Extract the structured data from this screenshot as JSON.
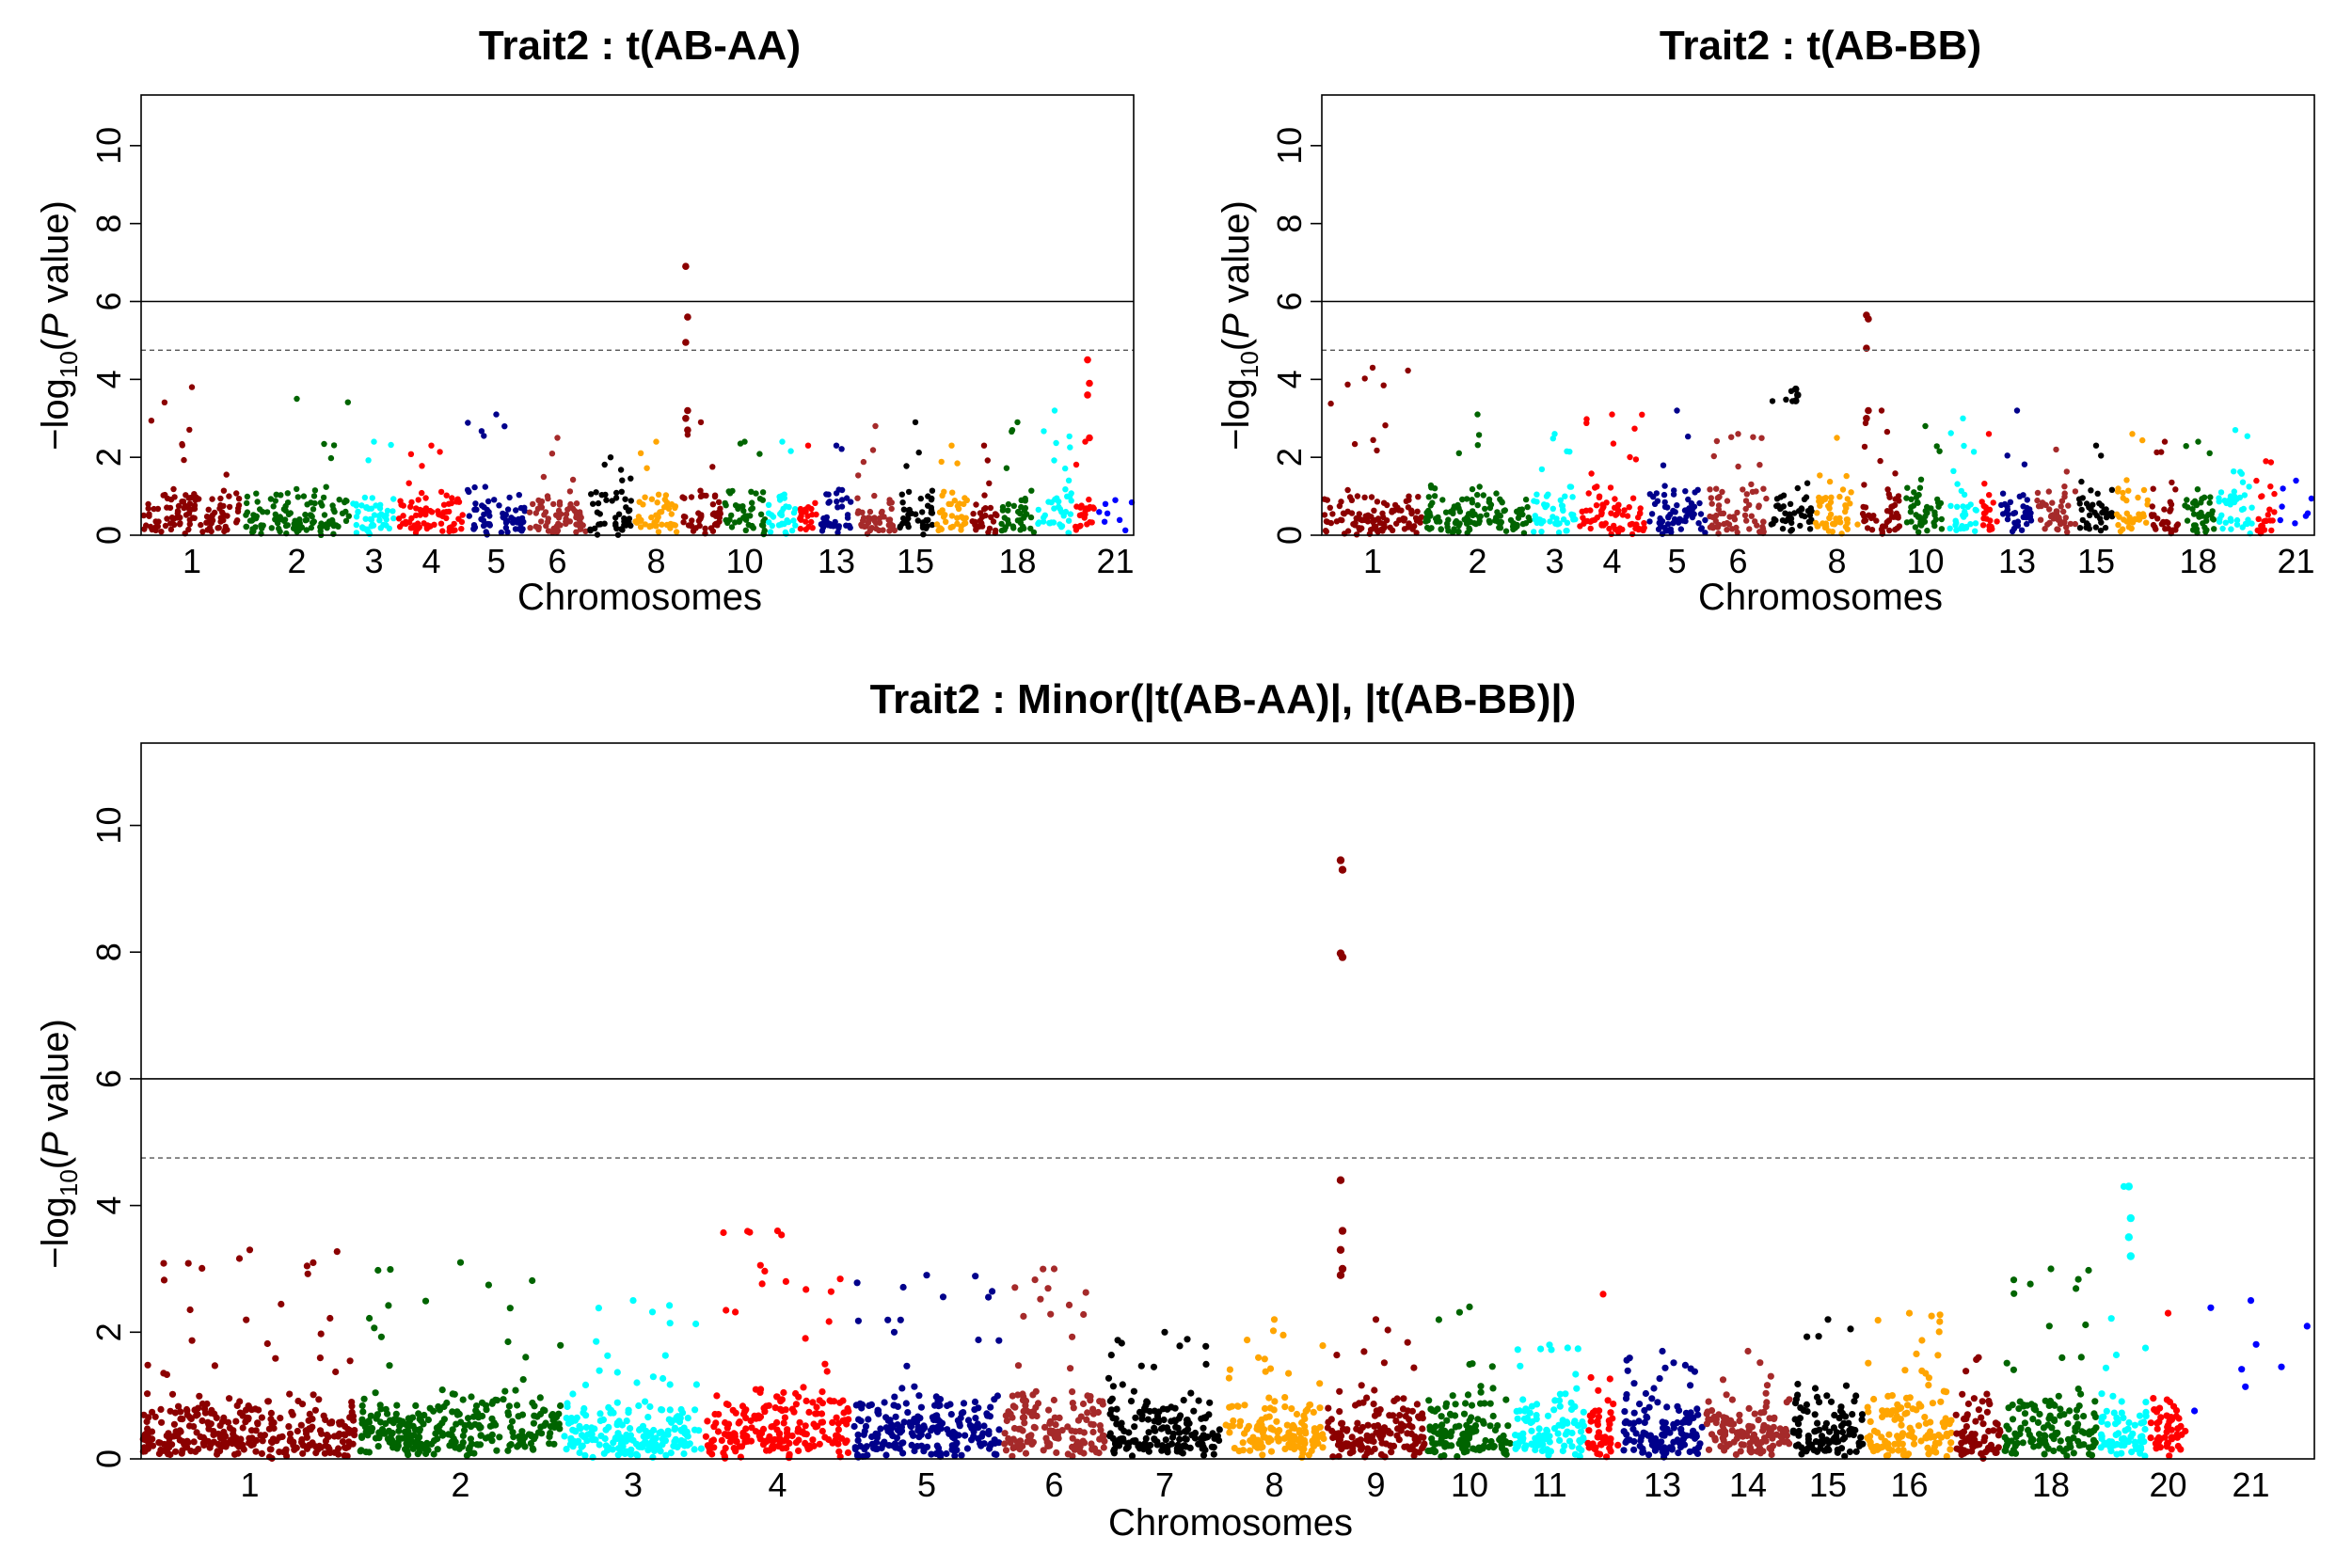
{
  "figure": {
    "background": "#ffffff"
  },
  "chart_data": [
    {
      "type": "scatter",
      "title": "Trait2 : t(AB-AA)",
      "xlabel": "Chromosomes",
      "ylabel": "−log10(P value)",
      "ylim": [
        0,
        11.3
      ],
      "yticks": [
        0,
        2,
        4,
        6,
        8,
        10
      ],
      "grid": false,
      "thresholds": [
        {
          "value": 6.0,
          "style": "solid"
        },
        {
          "value": 4.75,
          "style": "dashed"
        }
      ],
      "chromosome_labels": [
        "1",
        "2",
        "3",
        "4",
        "5",
        "6",
        "8",
        "10",
        "13",
        "15",
        "18",
        "21"
      ],
      "chromosomes": [
        {
          "chr": "1",
          "color": "#8b0000",
          "base": 1.3,
          "max": 3.8
        },
        {
          "chr": "2",
          "color": "#006400",
          "base": 1.3,
          "max": 3.5
        },
        {
          "chr": "3",
          "color": "#00ffff",
          "base": 1.2,
          "max": 2.4
        },
        {
          "chr": "4",
          "color": "#ff0000",
          "base": 1.3,
          "max": 2.3
        },
        {
          "chr": "5",
          "color": "#00008b",
          "base": 1.4,
          "max": 3.1
        },
        {
          "chr": "6",
          "color": "#a52a2a",
          "base": 1.4,
          "max": 2.5
        },
        {
          "chr": "7",
          "color": "#000000",
          "base": 1.3,
          "max": 2.0
        },
        {
          "chr": "8",
          "color": "#ffa500",
          "base": 1.3,
          "max": 2.4
        },
        {
          "chr": "9",
          "color": "#8b0000",
          "base": 1.2,
          "max": 2.9
        },
        {
          "chr": "10",
          "color": "#006400",
          "base": 1.3,
          "max": 2.4
        },
        {
          "chr": "11",
          "color": "#00ffff",
          "base": 1.3,
          "max": 2.4
        },
        {
          "chr": "12",
          "color": "#ff0000",
          "base": 1.2,
          "max": 2.3
        },
        {
          "chr": "13",
          "color": "#00008b",
          "base": 1.3,
          "max": 2.3
        },
        {
          "chr": "14",
          "color": "#a52a2a",
          "base": 1.2,
          "max": 2.8
        },
        {
          "chr": "15",
          "color": "#000000",
          "base": 1.3,
          "max": 2.9
        },
        {
          "chr": "16",
          "color": "#ffa500",
          "base": 1.3,
          "max": 2.3
        },
        {
          "chr": "17",
          "color": "#8b0000",
          "base": 1.2,
          "max": 2.3
        },
        {
          "chr": "18",
          "color": "#006400",
          "base": 1.3,
          "max": 2.9
        },
        {
          "chr": "19",
          "color": "#00ffff",
          "base": 1.4,
          "max": 3.2
        },
        {
          "chr": "20",
          "color": "#ff0000",
          "base": 1.3,
          "max": 2.4
        },
        {
          "chr": "21",
          "color": "#0000ff",
          "base": 0.5,
          "max": 0.9
        }
      ],
      "peaks": [
        {
          "chr": "9",
          "y": [
            6.9,
            5.6,
            4.95,
            3.2,
            3.0,
            2.7
          ]
        },
        {
          "chr": "20",
          "y": [
            4.5,
            3.9,
            3.6,
            2.5
          ]
        }
      ]
    },
    {
      "type": "scatter",
      "title": "Trait2 : t(AB-BB)",
      "xlabel": "Chromosomes",
      "ylabel": "−log10(P value)",
      "ylim": [
        0,
        11.3
      ],
      "yticks": [
        0,
        2,
        4,
        6,
        8,
        10
      ],
      "grid": false,
      "thresholds": [
        {
          "value": 6.0,
          "style": "solid"
        },
        {
          "value": 4.75,
          "style": "dashed"
        }
      ],
      "chromosome_labels": [
        "1",
        "2",
        "3",
        "4",
        "5",
        "6",
        "8",
        "10",
        "13",
        "15",
        "18",
        "21"
      ],
      "chromosomes": [
        {
          "chr": "1",
          "color": "#8b0000",
          "base": 1.3,
          "max": 4.3
        },
        {
          "chr": "2",
          "color": "#006400",
          "base": 1.4,
          "max": 3.1
        },
        {
          "chr": "3",
          "color": "#00ffff",
          "base": 1.4,
          "max": 2.6
        },
        {
          "chr": "4",
          "color": "#ff0000",
          "base": 1.4,
          "max": 3.1
        },
        {
          "chr": "5",
          "color": "#00008b",
          "base": 1.3,
          "max": 3.2
        },
        {
          "chr": "6",
          "color": "#a52a2a",
          "base": 1.4,
          "max": 2.6
        },
        {
          "chr": "7",
          "color": "#000000",
          "base": 1.3,
          "max": 3.7
        },
        {
          "chr": "8",
          "color": "#ffa500",
          "base": 1.4,
          "max": 2.5
        },
        {
          "chr": "9",
          "color": "#8b0000",
          "base": 1.4,
          "max": 3.2
        },
        {
          "chr": "10",
          "color": "#006400",
          "base": 1.4,
          "max": 2.8
        },
        {
          "chr": "11",
          "color": "#00ffff",
          "base": 1.4,
          "max": 3.0
        },
        {
          "chr": "12",
          "color": "#ff0000",
          "base": 1.3,
          "max": 2.6
        },
        {
          "chr": "13",
          "color": "#00008b",
          "base": 1.4,
          "max": 3.2
        },
        {
          "chr": "14",
          "color": "#a52a2a",
          "base": 1.2,
          "max": 2.2
        },
        {
          "chr": "15",
          "color": "#000000",
          "base": 1.3,
          "max": 2.3
        },
        {
          "chr": "16",
          "color": "#ffa500",
          "base": 1.4,
          "max": 2.6
        },
        {
          "chr": "17",
          "color": "#8b0000",
          "base": 1.3,
          "max": 2.4
        },
        {
          "chr": "18",
          "color": "#006400",
          "base": 1.3,
          "max": 2.4
        },
        {
          "chr": "19",
          "color": "#00ffff",
          "base": 1.4,
          "max": 2.7
        },
        {
          "chr": "20",
          "color": "#ff0000",
          "base": 1.2,
          "max": 1.9
        },
        {
          "chr": "21",
          "color": "#0000ff",
          "base": 0.6,
          "max": 1.4
        }
      ],
      "peaks": [
        {
          "chr": "9",
          "y": [
            5.65,
            5.55,
            4.8,
            3.2,
            3.0
          ]
        },
        {
          "chr": "7",
          "y": [
            3.75,
            3.6,
            3.45
          ]
        }
      ]
    },
    {
      "type": "scatter",
      "title": "Trait2 : Minor(|t(AB-AA)|, |t(AB-BB)|)",
      "xlabel": "Chromosomes",
      "ylabel": "−log10(P value)",
      "ylim": [
        0,
        11.3
      ],
      "yticks": [
        0,
        2,
        4,
        6,
        8,
        10
      ],
      "grid": false,
      "thresholds": [
        {
          "value": 6.0,
          "style": "solid"
        },
        {
          "value": 4.75,
          "style": "dashed"
        }
      ],
      "chromosome_labels": [
        "1",
        "2",
        "3",
        "4",
        "5",
        "6",
        "7",
        "8",
        "9",
        "10",
        "11",
        "13",
        "14",
        "15",
        "16",
        "18",
        "20",
        "21"
      ],
      "chromosomes": [
        {
          "chr": "1",
          "color": "#8b0000",
          "base": 1.1,
          "max": 3.3
        },
        {
          "chr": "2",
          "color": "#006400",
          "base": 1.2,
          "max": 3.1
        },
        {
          "chr": "3",
          "color": "#00ffff",
          "base": 1.1,
          "max": 2.5
        },
        {
          "chr": "4",
          "color": "#ff0000",
          "base": 1.2,
          "max": 3.6
        },
        {
          "chr": "5",
          "color": "#00008b",
          "base": 1.1,
          "max": 2.9
        },
        {
          "chr": "6",
          "color": "#a52a2a",
          "base": 1.2,
          "max": 3.0
        },
        {
          "chr": "7",
          "color": "#000000",
          "base": 1.1,
          "max": 2.0
        },
        {
          "chr": "8",
          "color": "#ffa500",
          "base": 1.2,
          "max": 2.2
        },
        {
          "chr": "9",
          "color": "#8b0000",
          "base": 1.1,
          "max": 2.2
        },
        {
          "chr": "10",
          "color": "#006400",
          "base": 1.1,
          "max": 2.4
        },
        {
          "chr": "11",
          "color": "#00ffff",
          "base": 1.1,
          "max": 1.8
        },
        {
          "chr": "12",
          "color": "#ff0000",
          "base": 1.1,
          "max": 2.6
        },
        {
          "chr": "13",
          "color": "#00008b",
          "base": 1.1,
          "max": 1.7
        },
        {
          "chr": "14",
          "color": "#a52a2a",
          "base": 1.0,
          "max": 1.7
        },
        {
          "chr": "15",
          "color": "#000000",
          "base": 1.1,
          "max": 2.2
        },
        {
          "chr": "16",
          "color": "#ffa500",
          "base": 1.2,
          "max": 2.3
        },
        {
          "chr": "17",
          "color": "#8b0000",
          "base": 1.1,
          "max": 1.6
        },
        {
          "chr": "18",
          "color": "#006400",
          "base": 1.2,
          "max": 3.0
        },
        {
          "chr": "19",
          "color": "#00ffff",
          "base": 1.1,
          "max": 4.3
        },
        {
          "chr": "20",
          "color": "#ff0000",
          "base": 1.1,
          "max": 2.3
        },
        {
          "chr": "21",
          "color": "#0000ff",
          "base": 0.6,
          "max": 2.5
        }
      ],
      "peaks": [
        {
          "chr": "9",
          "y": [
            9.45,
            9.3,
            7.98,
            7.92,
            4.4,
            3.6,
            3.3,
            3.0,
            2.9
          ]
        },
        {
          "chr": "19",
          "y": [
            4.3,
            3.8,
            3.5,
            3.2
          ]
        }
      ]
    }
  ]
}
